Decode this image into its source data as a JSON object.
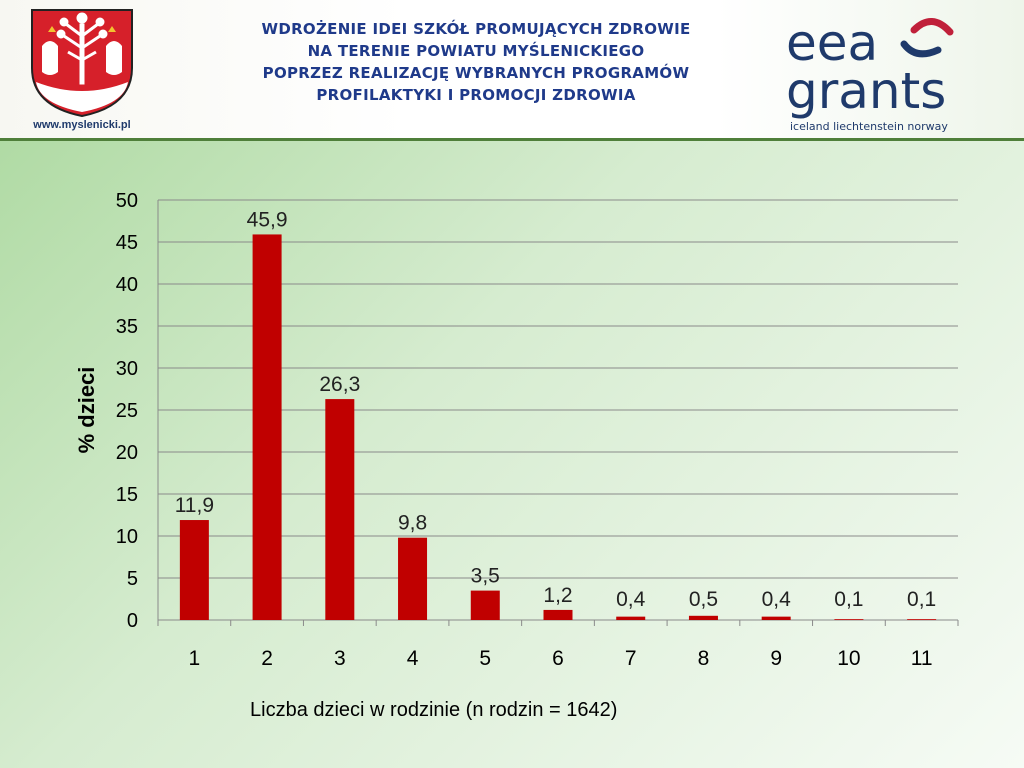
{
  "header": {
    "title_lines": [
      "WDROŻENIE IDEI SZKÓŁ PROMUJĄCYCH ZDROWIE",
      "NA TERENIE POWIATU MYŚLENICKIEGO",
      "POPRZEZ REALIZACJĘ WYBRANYCH PROGRAMÓW",
      "PROFILAKTYKI I PROMOCJI ZDROWIA"
    ],
    "site_url": "www.myslenicki.pl",
    "logo_line1": "eea",
    "logo_line2": "grants",
    "logo_countries": "iceland liechtenstein norway"
  },
  "colors": {
    "bar": "#c00000",
    "title": "#1f3a8a",
    "logo_blue": "#1f3a6b",
    "logo_red": "#c0203a"
  },
  "chart_data": {
    "type": "bar",
    "categories": [
      "1",
      "2",
      "3",
      "4",
      "5",
      "6",
      "7",
      "8",
      "9",
      "10",
      "11"
    ],
    "values": [
      11.9,
      45.9,
      26.3,
      9.8,
      3.5,
      1.2,
      0.4,
      0.5,
      0.4,
      0.1,
      0.1
    ],
    "value_labels": [
      "11,9",
      "45,9",
      "26,3",
      "9,8",
      "3,5",
      "1,2",
      "0,4",
      "0,5",
      "0,4",
      "0,1",
      "0,1"
    ],
    "xlabel": "Liczba dzieci w rodzinie (n rodzin = 1642)",
    "ylabel": "%  dzieci",
    "ylim": [
      0,
      50
    ],
    "yticks": [
      0,
      5,
      10,
      15,
      20,
      25,
      30,
      35,
      40,
      45,
      50
    ],
    "grid": true,
    "legend": "none"
  }
}
